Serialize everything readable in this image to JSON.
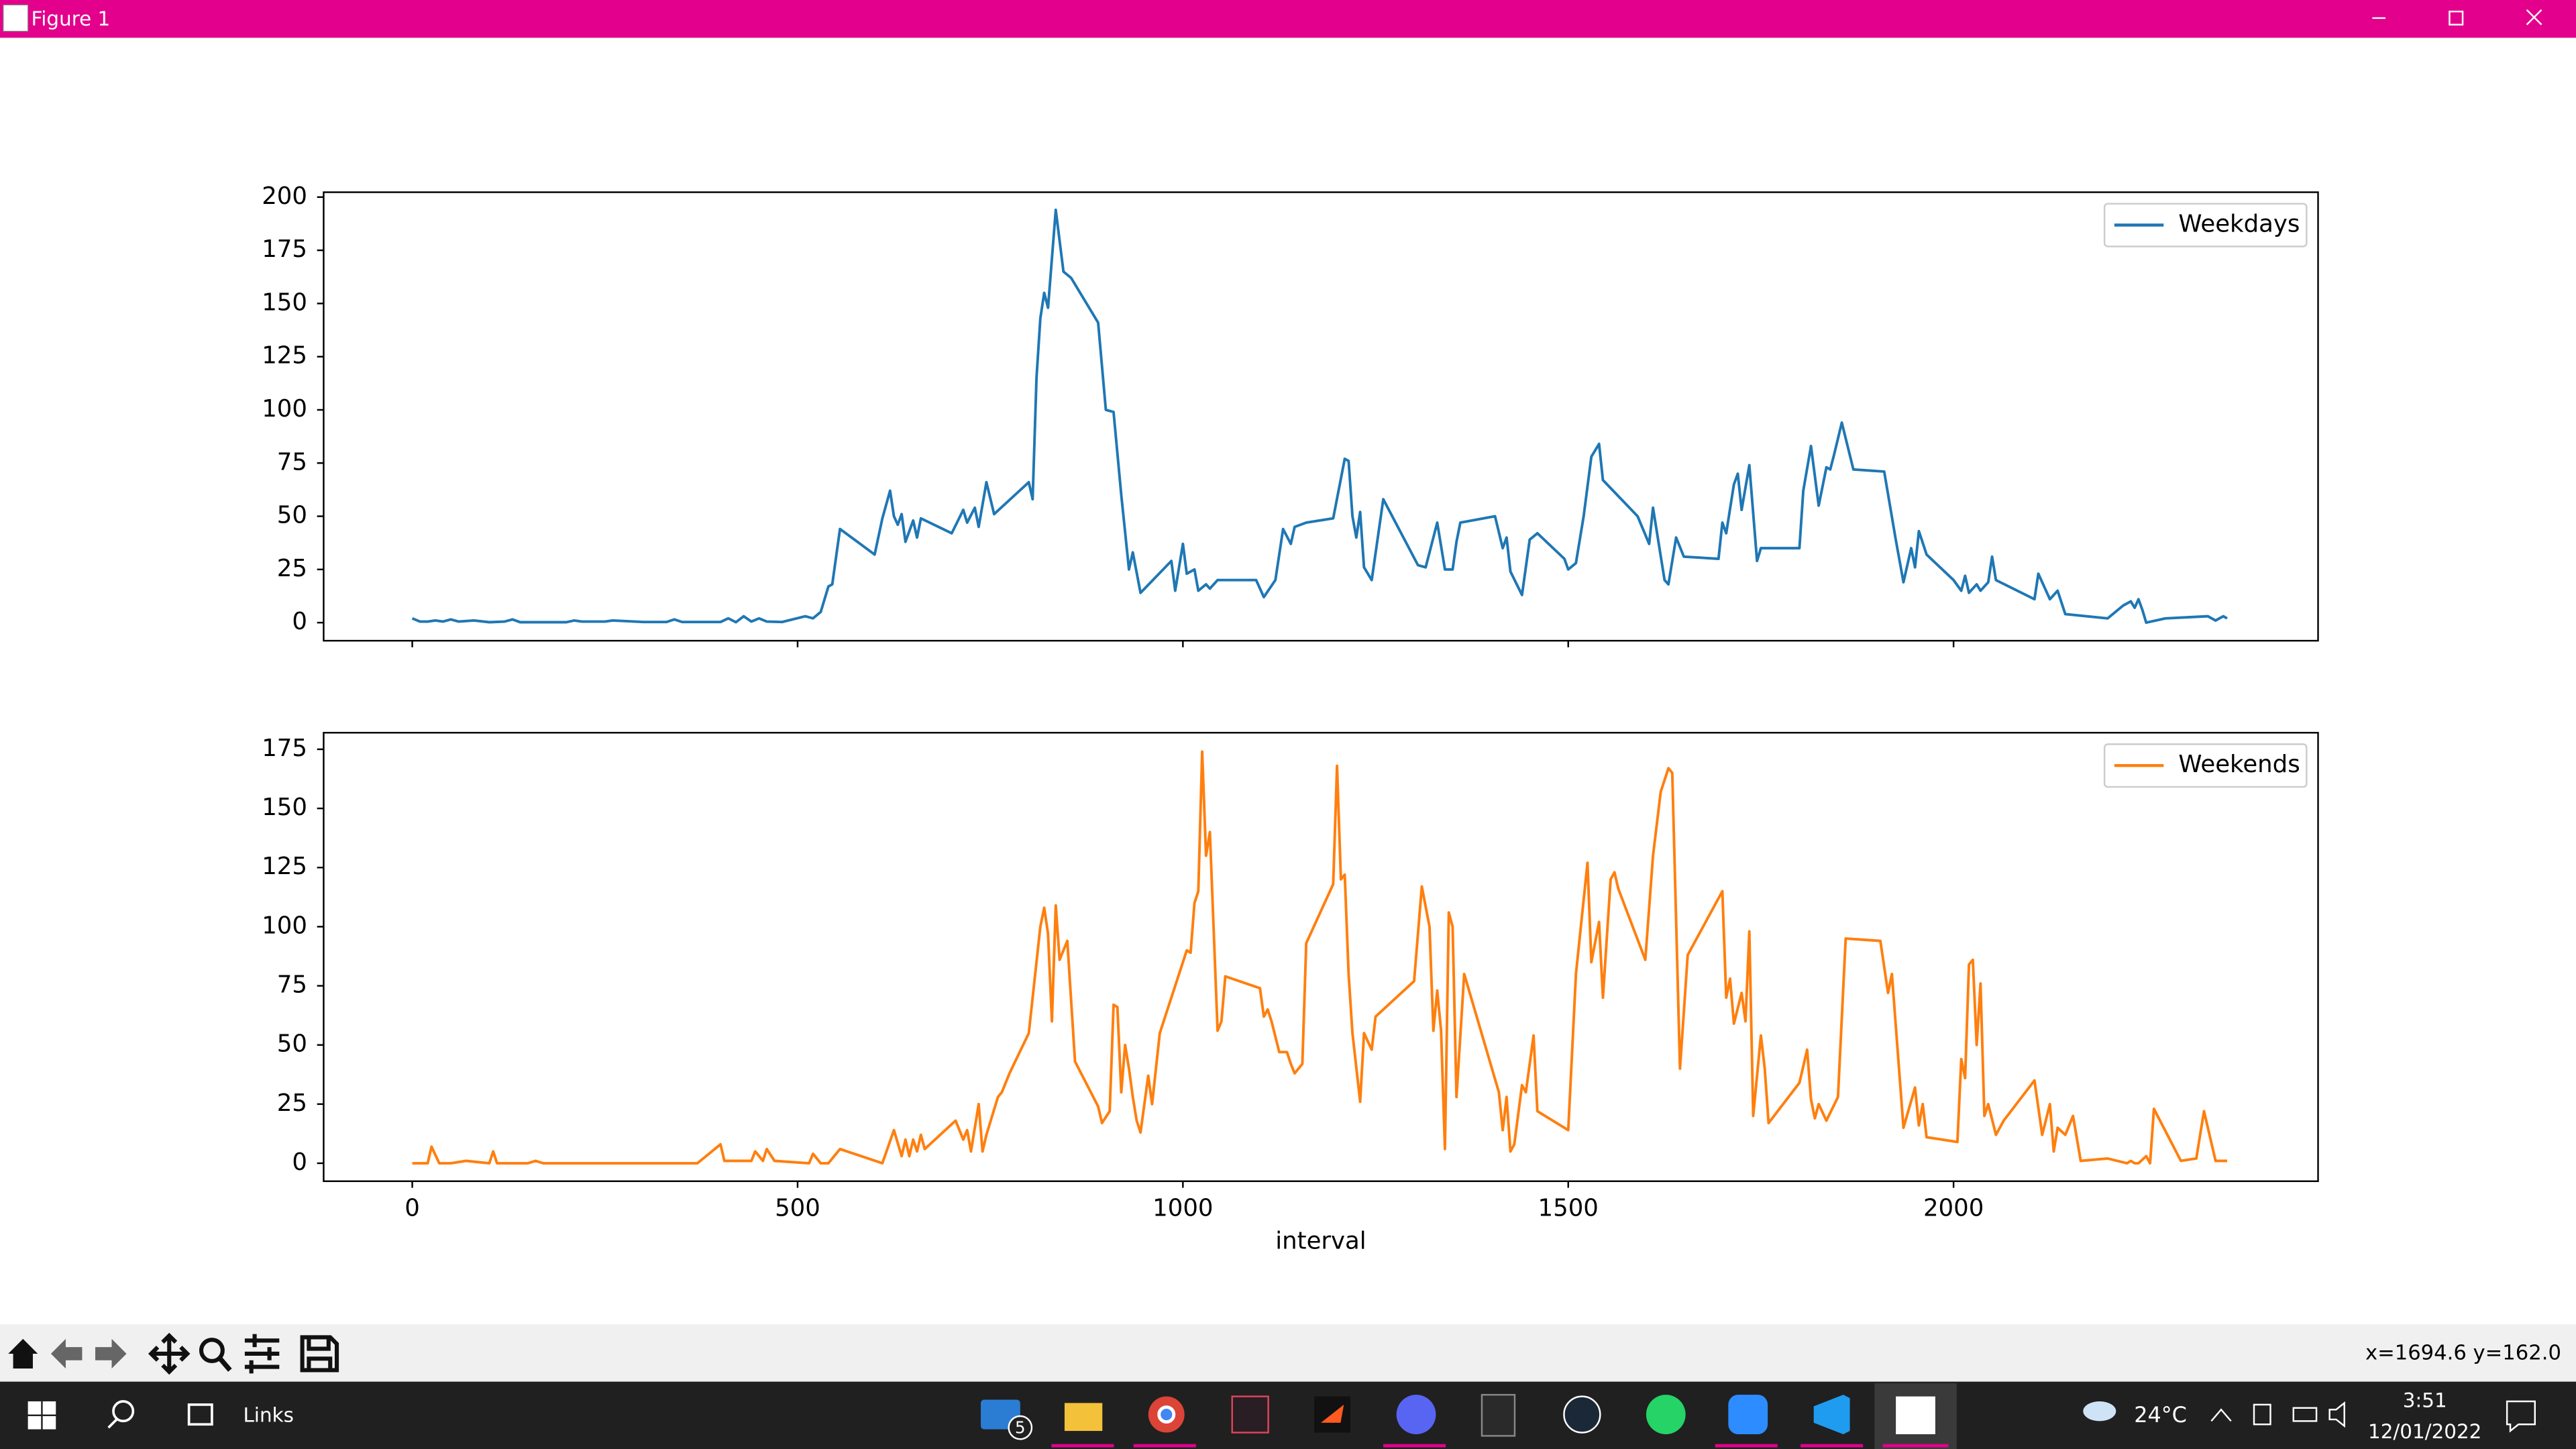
{
  "window": {
    "title": "Figure 1",
    "status": "x=1694.6 y=162.0"
  },
  "taskbar": {
    "search": "Links",
    "mail_badge": "5",
    "weather": "24°C",
    "time": "3:51",
    "date": "12/01/2022"
  },
  "chart_data": [
    {
      "type": "line",
      "legend": "upper right",
      "show_xticklabels": false,
      "xlim": [
        -115,
        2473
      ],
      "xticks": [
        0,
        500,
        1000,
        1500,
        2000
      ],
      "ylim": [
        -8.5,
        202.3
      ],
      "yticks": [
        0,
        25,
        50,
        75,
        100,
        125,
        150,
        175,
        200
      ],
      "series": [
        {
          "name": "Weekdays",
          "color": "#1f77b4",
          "x": [
            0,
            10,
            20,
            30,
            40,
            50,
            60,
            80,
            100,
            120,
            130,
            140,
            200,
            210,
            220,
            250,
            260,
            300,
            330,
            340,
            350,
            400,
            410,
            420,
            430,
            440,
            450,
            460,
            480,
            510,
            520,
            530,
            540,
            545,
            555,
            600,
            610,
            620,
            625,
            630,
            635,
            640,
            650,
            655,
            660,
            700,
            715,
            720,
            730,
            735,
            745,
            755,
            800,
            805,
            810,
            815,
            820,
            825,
            835,
            845,
            855,
            890,
            900,
            910,
            920,
            930,
            935,
            945,
            985,
            990,
            1000,
            1005,
            1015,
            1020,
            1030,
            1035,
            1045,
            1095,
            1105,
            1120,
            1130,
            1140,
            1145,
            1160,
            1195,
            1210,
            1215,
            1220,
            1225,
            1230,
            1235,
            1245,
            1260,
            1305,
            1315,
            1330,
            1340,
            1350,
            1355,
            1360,
            1405,
            1415,
            1420,
            1425,
            1440,
            1450,
            1460,
            1495,
            1500,
            1510,
            1520,
            1530,
            1540,
            1545,
            1590,
            1605,
            1610,
            1625,
            1630,
            1640,
            1650,
            1695,
            1700,
            1705,
            1715,
            1720,
            1725,
            1735,
            1745,
            1750,
            1800,
            1805,
            1815,
            1825,
            1835,
            1840,
            1845,
            1855,
            1870,
            1910,
            1925,
            1935,
            1945,
            1950,
            1955,
            1965,
            2000,
            2010,
            2015,
            2020,
            2030,
            2035,
            2045,
            2050,
            2055,
            2105,
            2110,
            2120,
            2125,
            2135,
            2145,
            2200,
            2220,
            2230,
            2235,
            2240,
            2245,
            2250,
            2275,
            2330,
            2340,
            2350,
            2355
          ],
          "values": [
            2,
            0.5,
            0.5,
            1,
            0.5,
            1.5,
            0.5,
            1,
            0.2,
            0.5,
            1.5,
            0.2,
            0.2,
            1,
            0.5,
            0.5,
            1,
            0.3,
            0.3,
            1.5,
            0.3,
            0.3,
            2,
            0.2,
            3,
            0.5,
            2,
            0.5,
            0.3,
            3,
            2,
            5,
            17,
            18,
            44,
            32,
            49,
            62,
            50,
            46,
            51,
            38,
            48,
            40,
            49,
            42,
            53,
            47,
            54,
            45,
            66,
            51,
            66,
            58,
            115,
            143,
            155,
            148,
            194,
            165,
            162,
            141,
            100,
            99,
            60,
            25,
            33,
            14,
            29,
            15,
            37,
            23,
            25,
            15,
            18,
            16,
            20,
            20,
            12,
            20,
            44,
            37,
            45,
            47,
            49,
            77,
            76,
            50,
            40,
            52,
            26,
            20,
            58,
            27,
            26,
            47,
            25,
            25,
            38,
            47,
            50,
            35,
            40,
            24,
            13,
            39,
            42,
            30,
            25,
            28,
            50,
            78,
            84,
            67,
            50,
            37,
            54,
            20,
            18,
            40,
            31,
            30,
            47,
            42,
            65,
            70,
            53,
            74,
            29,
            35,
            35,
            62,
            83,
            55,
            73,
            72,
            79,
            94,
            72,
            71,
            39,
            19,
            35,
            26,
            43,
            32,
            20,
            15,
            22,
            14,
            18,
            15,
            19,
            31,
            20,
            11,
            23,
            15,
            11,
            15,
            4,
            2,
            8,
            10,
            7,
            11,
            6,
            0,
            2,
            3,
            1,
            3,
            2
          ]
        }
      ]
    },
    {
      "type": "line",
      "legend": "upper right",
      "show_xticklabels": true,
      "xlabel": "interval",
      "xlim": [
        -115,
        2473
      ],
      "xticks": [
        0,
        500,
        1000,
        1500,
        2000
      ],
      "ylim": [
        -7.6,
        182
      ],
      "yticks": [
        0,
        25,
        50,
        75,
        100,
        125,
        150,
        175
      ],
      "series": [
        {
          "name": "Weekends",
          "color": "#ff7f0e",
          "x": [
            0,
            20,
            25,
            35,
            50,
            70,
            100,
            105,
            110,
            150,
            160,
            170,
            370,
            400,
            405,
            440,
            445,
            455,
            460,
            470,
            515,
            520,
            530,
            540,
            555,
            610,
            625,
            635,
            640,
            645,
            650,
            655,
            660,
            665,
            705,
            715,
            720,
            725,
            735,
            740,
            745,
            760,
            765,
            775,
            800,
            815,
            820,
            825,
            830,
            835,
            840,
            850,
            860,
            890,
            895,
            905,
            910,
            915,
            920,
            925,
            930,
            935,
            940,
            945,
            955,
            960,
            970,
            1005,
            1010,
            1015,
            1020,
            1025,
            1030,
            1035,
            1045,
            1050,
            1055,
            1100,
            1105,
            1110,
            1115,
            1125,
            1135,
            1140,
            1145,
            1155,
            1160,
            1195,
            1200,
            1205,
            1210,
            1215,
            1220,
            1230,
            1235,
            1245,
            1250,
            1300,
            1310,
            1320,
            1325,
            1330,
            1335,
            1340,
            1345,
            1350,
            1355,
            1365,
            1410,
            1415,
            1420,
            1425,
            1430,
            1440,
            1445,
            1455,
            1460,
            1500,
            1510,
            1525,
            1530,
            1540,
            1545,
            1555,
            1560,
            1565,
            1600,
            1610,
            1620,
            1630,
            1635,
            1645,
            1655,
            1700,
            1705,
            1710,
            1715,
            1725,
            1730,
            1735,
            1740,
            1750,
            1755,
            1760,
            1800,
            1810,
            1815,
            1820,
            1825,
            1835,
            1850,
            1860,
            1905,
            1915,
            1920,
            1935,
            1950,
            1955,
            1960,
            1965,
            2005,
            2010,
            2015,
            2020,
            2025,
            2030,
            2035,
            2040,
            2045,
            2055,
            2065,
            2105,
            2115,
            2125,
            2130,
            2135,
            2145,
            2155,
            2165,
            2200,
            2225,
            2230,
            2235,
            2240,
            2250,
            2255,
            2260,
            2295,
            2315,
            2325,
            2335,
            2340,
            2355
          ],
          "values": [
            0,
            0,
            7,
            0,
            0,
            1,
            0,
            5,
            0,
            0,
            1,
            0,
            0,
            8,
            1,
            1,
            5,
            1,
            6,
            1,
            0,
            4,
            0,
            0,
            6,
            0,
            14,
            3,
            10,
            3,
            10,
            5,
            12,
            6,
            18,
            10,
            14,
            5,
            25,
            5,
            12,
            28,
            30,
            38,
            55,
            100,
            108,
            97,
            60,
            109,
            86,
            94,
            43,
            24,
            17,
            22,
            67,
            66,
            30,
            50,
            40,
            28,
            18,
            13,
            37,
            25,
            55,
            90,
            89,
            110,
            115,
            174,
            130,
            140,
            56,
            60,
            79,
            74,
            62,
            65,
            60,
            47,
            47,
            42,
            38,
            42,
            93,
            118,
            168,
            120,
            122,
            80,
            55,
            26,
            55,
            48,
            62,
            77,
            117,
            100,
            56,
            73,
            56,
            6,
            106,
            100,
            28,
            80,
            30,
            14,
            28,
            5,
            8,
            33,
            30,
            54,
            22,
            14,
            80,
            127,
            85,
            102,
            70,
            120,
            123,
            116,
            86,
            130,
            157,
            167,
            165,
            40,
            88,
            115,
            70,
            78,
            59,
            72,
            60,
            98,
            20,
            54,
            40,
            17,
            34,
            48,
            27,
            19,
            25,
            18,
            28,
            95,
            94,
            72,
            80,
            15,
            32,
            16,
            25,
            11,
            9,
            44,
            36,
            84,
            86,
            50,
            76,
            20,
            25,
            12,
            18,
            35,
            12,
            25,
            5,
            15,
            12,
            20,
            1,
            2,
            0,
            1,
            0,
            0,
            3,
            0,
            23,
            1,
            2,
            22,
            8,
            1,
            1
          ]
        }
      ]
    }
  ]
}
